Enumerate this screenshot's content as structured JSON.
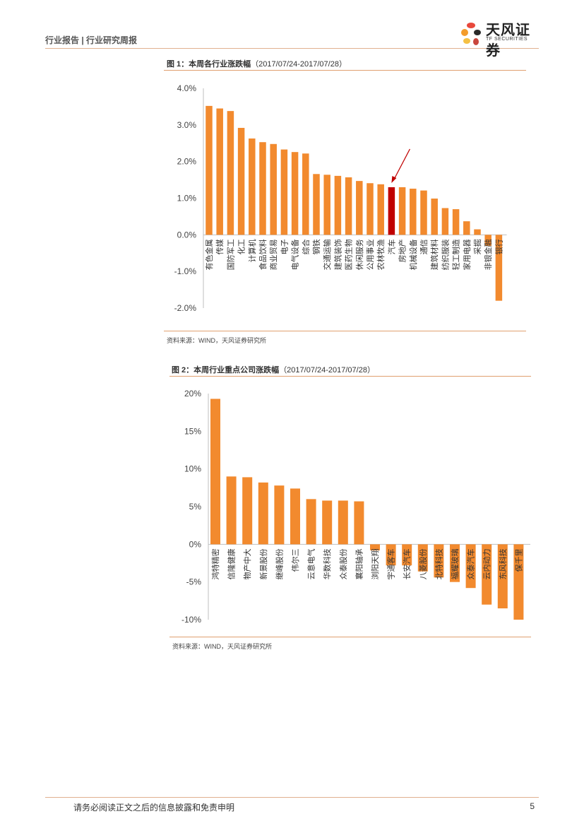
{
  "header": {
    "report_type": "行业报告 | 行业研究周报"
  },
  "logo": {
    "name_cn": "天风证券",
    "name_en": "TF SECURITIES",
    "petal_colors": [
      "#e8483c",
      "#f39c2b",
      "#2a2a2a",
      "#f5c043",
      "#c9463d"
    ]
  },
  "figures": [
    {
      "title": "图 1：本周各行业涨跌幅",
      "date_range": "（2017/07/24-2017/07/28）",
      "source": "资料来源：WIND，天风证券研究所"
    },
    {
      "title": "图 2：本周行业重点公司涨跌幅",
      "date_range": "（2017/07/24-2017/07/28）",
      "source": "资料来源：WIND，天风证券研究所"
    }
  ],
  "chart_data": [
    {
      "type": "bar",
      "title": "",
      "xlabel": "",
      "ylabel": "",
      "ylim": [
        -2.0,
        4.0
      ],
      "yticks": [
        "4.0%",
        "3.0%",
        "2.0%",
        "1.0%",
        "0.0%",
        "-1.0%",
        "-2.0%"
      ],
      "ytick_values": [
        4.0,
        3.0,
        2.0,
        1.0,
        0.0,
        -1.0,
        -2.0
      ],
      "grid": false,
      "bar_color": "#f28a2e",
      "highlight_color": "#c00000",
      "highlight_category": "汽车",
      "arrow_annotation": true,
      "categories": [
        "有色金属",
        "传媒",
        "国防军工",
        "化工",
        "计算机",
        "食品饮料",
        "商业贸易",
        "电子",
        "电气设备",
        "综合",
        "钢铁",
        "交通运输",
        "建筑装饰",
        "医药生物",
        "休闲服务",
        "公用事业",
        "农林牧渔",
        "汽车",
        "房地产",
        "机械设备",
        "通信",
        "建筑材料",
        "纺织服装",
        "轻工制造",
        "家用电器",
        "采掘",
        "非银金融",
        "银行"
      ],
      "values": [
        3.52,
        3.45,
        3.38,
        2.92,
        2.63,
        2.53,
        2.48,
        2.33,
        2.26,
        2.22,
        1.66,
        1.64,
        1.61,
        1.57,
        1.47,
        1.41,
        1.38,
        1.3,
        1.3,
        1.26,
        1.21,
        0.99,
        0.73,
        0.7,
        0.37,
        0.15,
        -0.3,
        -1.8
      ]
    },
    {
      "type": "bar",
      "title": "",
      "xlabel": "",
      "ylabel": "",
      "ylim": [
        -10,
        20
      ],
      "yticks": [
        "20%",
        "15%",
        "10%",
        "5%",
        "0%",
        "-5%",
        "-10%"
      ],
      "ytick_values": [
        20,
        15,
        10,
        5,
        0,
        -5,
        -10
      ],
      "grid": false,
      "bar_color": "#f28a2e",
      "categories": [
        "鸿特精密",
        "信隆健康",
        "物产中大",
        "新景股份",
        "继峰股份",
        "伟尔三",
        "云意电气",
        "华数科技",
        "众泰股份",
        "襄阳轴承",
        "浏阳天翔",
        "宇通客车",
        "长安汽车",
        "八菱股份",
        "北特科技",
        "福耀玻璃",
        "众泰汽车",
        "云内动力",
        "东风科技",
        "保千里"
      ],
      "values": [
        19.3,
        9.0,
        8.9,
        8.2,
        7.8,
        7.4,
        6.0,
        5.8,
        5.8,
        5.7,
        -0.8,
        -2.8,
        -2.8,
        -3.6,
        -4.4,
        -5.0,
        -5.8,
        -8.0,
        -8.5,
        -10.0
      ]
    }
  ],
  "footer": {
    "disclaimer": "请务必阅读正文之后的信息披露和免责申明",
    "page": "5"
  }
}
